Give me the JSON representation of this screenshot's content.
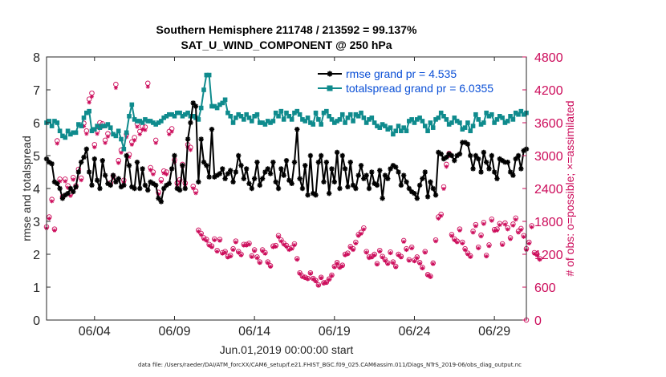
{
  "chart_data": {
    "type": "line",
    "title_line1": "Southern Hemisphere 211748 / 213592 = 99.137%",
    "title_line2": "SAT_U_WIND_COMPONENT @ 250 hPa",
    "xlabel": "Jun.01,2019 00:00:00 start",
    "ylabel_left": "rmse and totalspread",
    "ylabel_right": "# of obs: o=possible; ×=assimilated",
    "xlim": [
      1,
      31
    ],
    "ylim_left": [
      0,
      8
    ],
    "ylim_right": [
      0,
      4800
    ],
    "x_ticks": [
      4,
      9,
      14,
      19,
      24,
      29
    ],
    "x_tick_labels": [
      "06/04",
      "06/09",
      "06/14",
      "06/19",
      "06/24",
      "06/29"
    ],
    "y_ticks_left": [
      "0",
      "1",
      "2",
      "3",
      "4",
      "5",
      "6",
      "7",
      "8"
    ],
    "y_ticks_right": [
      "0",
      "600",
      "1200",
      "1800",
      "2400",
      "3000",
      "3600",
      "4200",
      "4800"
    ],
    "legend_position": "top-right",
    "colors": {
      "rmse": "#000000",
      "spread": "#0f8b8d",
      "obs": "#cc0b5a"
    },
    "footer": "data file: /Users/raeder/DAI/ATM_forcXX/CAM6_setup/f.e21.FHIST_BGC.f09_025.CAM6assim.011/Diags_NTrS_2019-06/obs_diag_output.nc",
    "series": [
      {
        "name": "rmse grand pr = 4.535",
        "key": "rmse",
        "values": [
          4.9,
          4.8,
          4.75,
          4.2,
          4.15,
          4.0,
          3.7,
          3.8,
          3.85,
          4.0,
          3.9,
          4.05,
          4.5,
          4.8,
          4.95,
          5.2,
          4.5,
          4.1,
          4.9,
          4.25,
          4.0,
          4.85,
          4.4,
          4.15,
          4.1,
          4.4,
          4.2,
          4.3,
          4.05,
          4.1,
          5.0,
          4.7,
          4.05,
          4.0,
          4.8,
          4.0,
          4.6,
          4.1,
          3.95,
          4.2,
          4.15,
          4.1,
          3.7,
          3.6,
          4.0,
          4.1,
          4.15,
          4.6,
          5.0,
          4.0,
          3.95,
          4.7,
          4.0,
          5.5,
          6.0,
          6.6,
          6.5,
          4.2,
          5.5,
          4.8,
          4.7,
          4.35,
          5.8,
          4.35,
          4.4,
          4.45,
          4.6,
          4.3,
          4.45,
          4.55,
          4.2,
          4.5,
          5.0,
          4.7,
          4.3,
          4.6,
          4.15,
          4.0,
          4.3,
          4.8,
          4.1,
          4.3,
          4.5,
          4.6,
          4.45,
          4.8,
          4.2,
          4.0,
          4.6,
          4.4,
          4.85,
          4.25,
          4.15,
          4.8,
          5.8,
          4.3,
          4.0,
          4.7,
          3.8,
          5.0,
          3.85,
          3.8,
          4.8,
          5.0,
          4.2,
          4.8,
          3.85,
          4.6,
          4.2,
          5.1,
          4.0,
          5.0,
          4.6,
          4.05,
          4.8,
          4.1,
          4.0,
          4.4,
          4.7,
          4.3,
          4.4,
          4.0,
          4.5,
          4.15,
          4.1,
          4.55,
          3.7,
          4.4,
          4.3,
          4.6,
          4.7,
          4.65,
          4.5,
          4.1,
          4.4,
          4.2,
          4.0,
          3.9,
          3.85,
          3.7,
          4.1,
          4.3,
          4.5,
          3.75,
          4.2,
          4.0,
          3.8,
          5.1,
          5.05,
          4.9,
          4.95,
          5.05,
          5.0,
          4.85,
          5.0,
          5.05,
          5.4,
          5.4,
          5.35,
          5.0,
          4.6,
          5.0,
          4.9,
          4.5,
          5.1,
          4.8,
          4.6,
          5.0,
          4.5,
          4.3,
          4.9,
          4.85,
          4.8,
          4.8,
          4.5,
          4.4,
          4.9,
          5.0,
          4.6,
          5.15,
          5.2
        ],
        "visual": "solid black line with star markers"
      },
      {
        "name": "totalspread grand pr = 6.0355",
        "key": "spread",
        "values": [
          6.0,
          6.05,
          5.9,
          6.05,
          6.0,
          5.75,
          5.6,
          5.55,
          5.75,
          5.65,
          5.7,
          5.7,
          5.95,
          5.9,
          6.15,
          6.3,
          6.35,
          5.75,
          5.8,
          5.9,
          5.85,
          5.9,
          5.9,
          5.95,
          5.85,
          5.65,
          5.6,
          5.75,
          5.5,
          5.2,
          5.7,
          6.2,
          6.55,
          6.1,
          6.05,
          6.05,
          6.0,
          6.1,
          6.05,
          6.05,
          6.0,
          5.95,
          6.0,
          6.05,
          6.15,
          6.2,
          6.25,
          6.25,
          6.2,
          6.3,
          6.3,
          6.2,
          6.25,
          6.3,
          6.2,
          6.2,
          6.15,
          6.1,
          6.45,
          7.0,
          7.45,
          7.45,
          6.5,
          6.5,
          6.45,
          6.55,
          6.6,
          6.7,
          6.3,
          6.2,
          6.0,
          6.15,
          6.25,
          6.2,
          6.1,
          6.25,
          6.15,
          6.05,
          6.2,
          6.25,
          6.0,
          6.0,
          5.95,
          6.05,
          6.0,
          6.05,
          6.3,
          6.2,
          6.35,
          6.1,
          6.3,
          6.2,
          6.1,
          6.3,
          6.35,
          6.25,
          6.1,
          6.05,
          6.15,
          6.0,
          5.95,
          6.3,
          6.1,
          5.95,
          6.3,
          6.35,
          6.2,
          6.1,
          6.0,
          6.05,
          6.1,
          6.25,
          6.0,
          6.15,
          6.25,
          6.05,
          6.25,
          6.2,
          6.3,
          6.15,
          6.0,
          6.1,
          6.15,
          6.0,
          5.9,
          5.85,
          5.95,
          5.9,
          5.8,
          5.85,
          5.65,
          5.75,
          5.9,
          5.75,
          5.85,
          5.75,
          6.05,
          6.1,
          6.0,
          6.1,
          6.15,
          6.05,
          5.9,
          5.75,
          6.0,
          5.85,
          6.1,
          6.15,
          6.3,
          6.2,
          6.1,
          5.95,
          6.0,
          6.15,
          6.05,
          6.0,
          5.8,
          5.85,
          6.0,
          5.75,
          5.9,
          6.25,
          6.1,
          5.95,
          6.0,
          6.3,
          6.2,
          6.25,
          6.0,
          6.1,
          6.2,
          6.15,
          6.0,
          6.05,
          6.2,
          6.1,
          6.3,
          6.25,
          6.35,
          6.25,
          6.3
        ],
        "visual": "solid teal line with filled square markers"
      }
    ],
    "obs_counts": {
      "description": "observation counts per cycle on right axis (markers only)",
      "values": [
        1700,
        1880,
        2200,
        1660,
        3270,
        2570,
        2250,
        2570,
        2450,
        2300,
        2600,
        2450,
        2750,
        2590,
        3590,
        3450,
        4030,
        4140,
        3200,
        3450,
        3600,
        3580,
        3280,
        3400,
        2500,
        2630,
        4300,
        2910,
        3100,
        2550,
        3390,
        3020,
        3250,
        3330,
        3580,
        3440,
        3530,
        3520,
        4320,
        2780,
        2700,
        3280,
        2330,
        2560,
        2720,
        2700,
        3440,
        3490,
        2920,
        2500,
        2560,
        2840,
        2500,
        3200,
        3150,
        2440,
        2350,
        1640,
        1580,
        1500,
        1470,
        1380,
        1350,
        1480,
        1270,
        1470,
        1230,
        1250,
        1160,
        1180,
        1300,
        1440,
        1250,
        1200,
        1380,
        1380,
        1400,
        1170,
        1280,
        1150,
        1060,
        1280,
        1230,
        1060,
        990,
        1350,
        1360,
        1540,
        1460,
        1400,
        1360,
        1300,
        1320,
        1390,
        1120,
        860,
        800,
        780,
        760,
        860,
        760,
        720,
        640,
        780,
        680,
        690,
        750,
        820,
        980,
        1050,
        970,
        1000,
        1200,
        1220,
        1340,
        1300,
        1420,
        1560,
        1600,
        1680,
        1250,
        1150,
        1160,
        1200,
        1030,
        1270,
        1160,
        1100,
        1040,
        1240,
        1060,
        980,
        1200,
        1160,
        1450,
        1300,
        1100,
        1330,
        1090,
        1150,
        1050,
        960,
        1250,
        830,
        800,
        1040,
        1460,
        1880,
        1930,
        2430,
        2840,
        3040,
        1560,
        1480,
        1440,
        1660,
        1420,
        1300,
        1220,
        1170,
        1620,
        1740,
        1330,
        1550,
        1780,
        1180,
        1370,
        1840,
        1650,
        1660,
        1760,
        1390,
        1770,
        1680,
        1500,
        1750,
        1860,
        1620,
        1670,
        1540,
        1300,
        1420,
        1720,
        1230,
        1200,
        1120
      ],
      "assim_offset": 0.985
    },
    "last_obs_value": 0
  }
}
